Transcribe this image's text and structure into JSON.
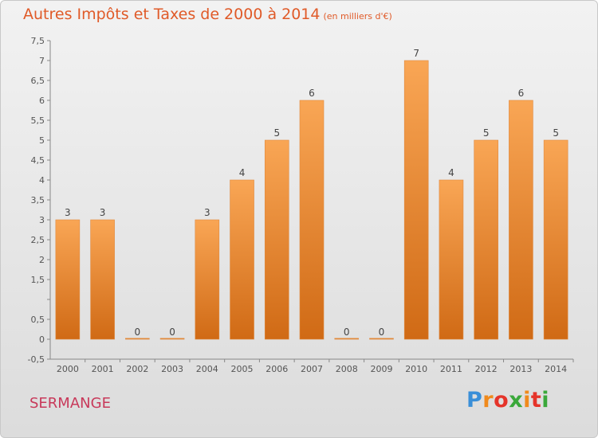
{
  "header": {
    "title": "Autres Impôts et Taxes de 2000 à 2014",
    "unit": "(en milliers d'€)"
  },
  "footer": {
    "place": "SERMANGE",
    "logo_letters": [
      {
        "ch": "P",
        "color": "#3a8fd8"
      },
      {
        "ch": "r",
        "color": "#f08a1c"
      },
      {
        "ch": "o",
        "color": "#e5342a"
      },
      {
        "ch": "x",
        "color": "#3aa83a"
      },
      {
        "ch": "i",
        "color": "#f08a1c"
      },
      {
        "ch": "t",
        "color": "#e5342a"
      },
      {
        "ch": "i",
        "color": "#3aa83a"
      }
    ]
  },
  "chart_data": {
    "type": "bar",
    "title": "Autres Impôts et Taxes de 2000 à 2014",
    "subtitle": "(en milliers d'€)",
    "categories": [
      "2000",
      "2001",
      "2002",
      "2003",
      "2004",
      "2005",
      "2006",
      "2007",
      "2008",
      "2009",
      "2010",
      "2011",
      "2012",
      "2013",
      "2014"
    ],
    "values": [
      3,
      3,
      0,
      0,
      3,
      4,
      5,
      6,
      0,
      0,
      7,
      4,
      5,
      6,
      5
    ],
    "data_labels": [
      "3",
      "3",
      "0",
      "0",
      "3",
      "4",
      "5",
      "6",
      "0",
      "0",
      "7",
      "4",
      "5",
      "6",
      "5"
    ],
    "ylim": [
      -0.5,
      7.5
    ],
    "yticks": [
      -0.5,
      0,
      0.5,
      1,
      1.5,
      2,
      2.5,
      3,
      3.5,
      4,
      4.5,
      5,
      5.5,
      6,
      6.5,
      7,
      7.5
    ],
    "ytick_labels": [
      "-0,5",
      "0",
      "0,5",
      "",
      "1,5",
      "2",
      "2,5",
      "3",
      "3,5",
      "4",
      "4,5",
      "5",
      "5,5",
      "6",
      "6,5",
      "7",
      "7,5"
    ],
    "bar_color": "#f08a30",
    "bar_color_dark": "#d06a15",
    "grid": false
  }
}
